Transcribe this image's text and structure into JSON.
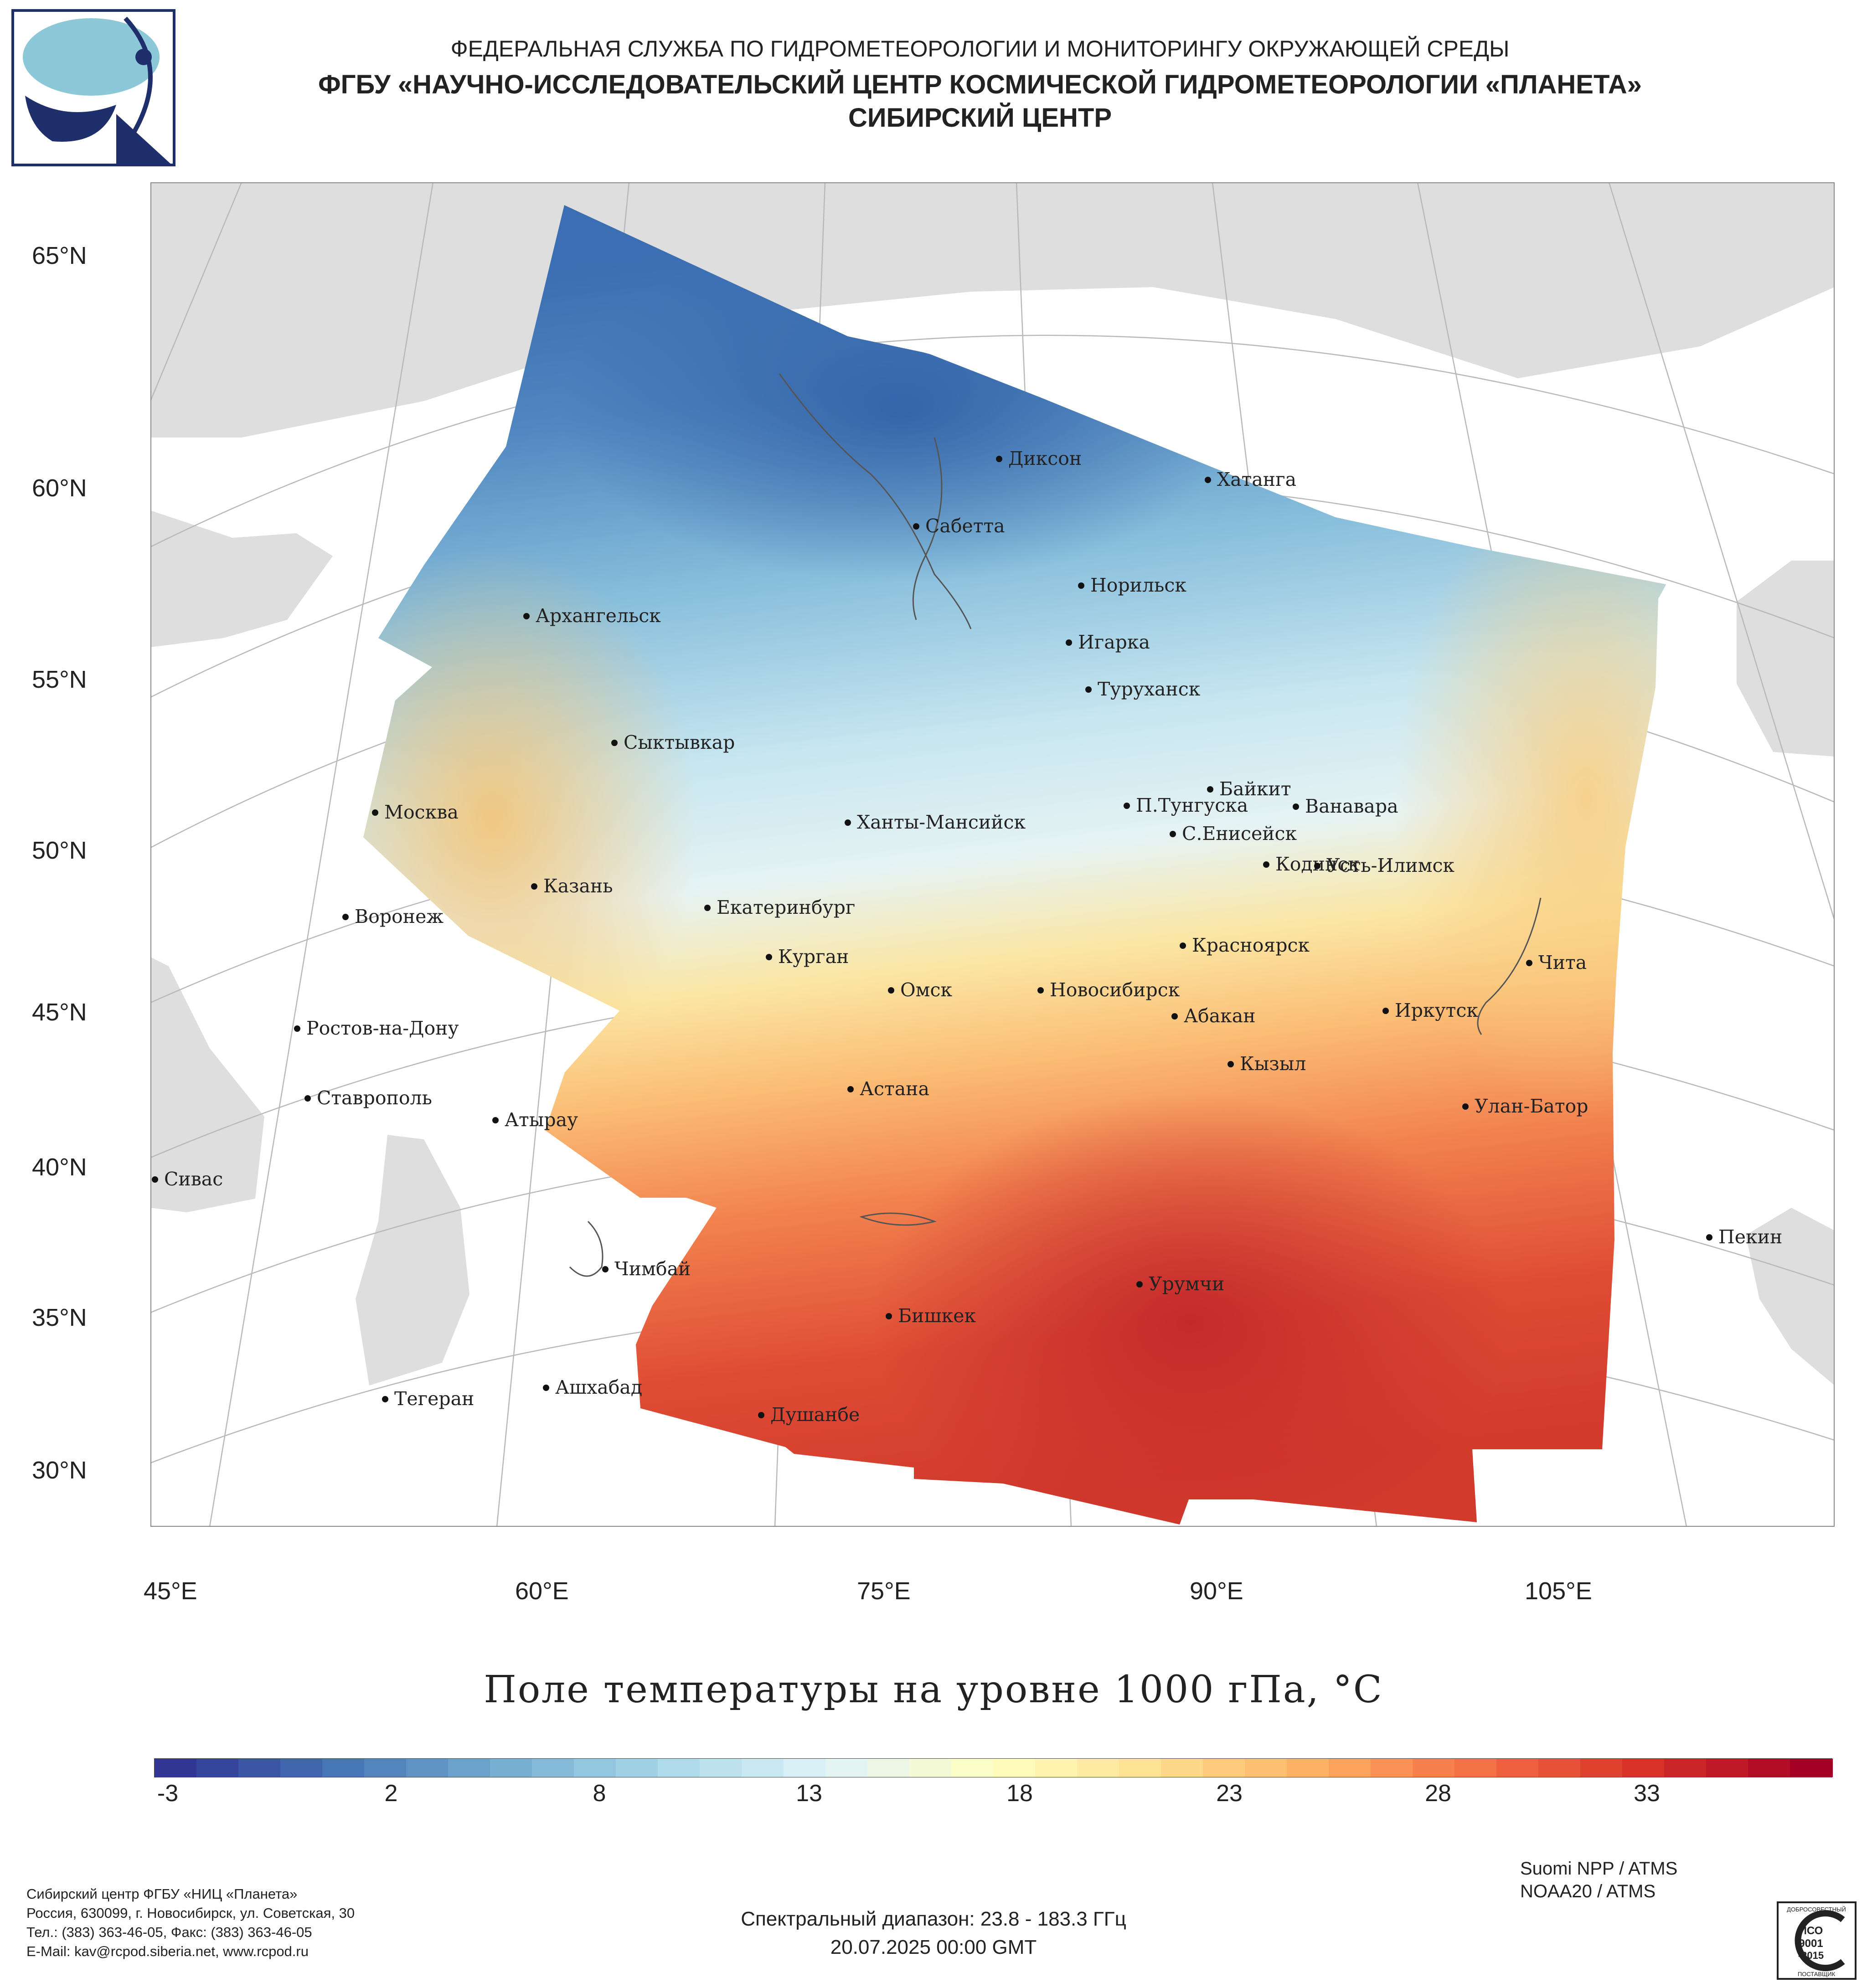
{
  "header": {
    "line1": "ФЕДЕРАЛЬНАЯ СЛУЖБА ПО ГИДРОМЕТЕОРОЛОГИИ И МОНИТОРИНГУ ОКРУЖАЮЩЕЙ СРЕДЫ",
    "line2": "ФГБУ «НАУЧНО-ИССЛЕДОВАТЕЛЬСКИЙ ЦЕНТР КОСМИЧЕСКОЙ ГИДРОМЕТЕОРОЛОГИИ «ПЛАНЕТА»",
    "line3": "СИБИРСКИЙ ЦЕНТР"
  },
  "map": {
    "lat_labels": [
      "65°N",
      "60°N",
      "55°N",
      "50°N",
      "45°N",
      "40°N",
      "35°N",
      "30°N"
    ],
    "lon_labels": [
      "45°E",
      "60°E",
      "75°E",
      "90°E",
      "105°E"
    ],
    "cities": [
      "Диксон",
      "Хатанга",
      "Сабетта",
      "Норильск",
      "Архангельск",
      "Игарка",
      "Туруханск",
      "Сыктывкар",
      "Байкит",
      "П.Тунгуска",
      "Ванавара",
      "Москва",
      "Ханты-Мансийск",
      "С.Енисейск",
      "Кодинск",
      "Усть-Илимск",
      "Казань",
      "Екатеринбург",
      "Воронеж",
      "Красноярск",
      "Курган",
      "Чита",
      "Омск",
      "Новосибирск",
      "Иркутск",
      "Абакан",
      "Ростов-на-Дону",
      "Кызыл",
      "Астана",
      "Ставрополь",
      "Улан-Батор",
      "Атырау",
      "Сивас",
      "Пекин",
      "Чимбай",
      "Урумчи",
      "Бишкек",
      "Ашхабад",
      "Тегеран",
      "Душанбе"
    ]
  },
  "title": "Поле температуры на уровне 1000 гПа, °С",
  "colorbar": {
    "ticks": [
      "-3",
      "2",
      "8",
      "13",
      "18",
      "23",
      "28",
      "33"
    ],
    "colors": [
      "#313695",
      "#4575b4",
      "#74add1",
      "#abd9e9",
      "#e0f3f8",
      "#ffffbf",
      "#fee090",
      "#fdae61",
      "#f46d43",
      "#d73027",
      "#a50026"
    ]
  },
  "footer": {
    "org_lines": [
      "Сибирский центр ФГБУ «НИЦ «Планета»",
      "Россия, 630099, г. Новосибирск, ул. Советская, 30",
      "Тел.: (383) 363-46-05, Факс: (383) 363-46-05",
      "E-Mail: kav@rcpod.siberia.net, www.rcpod.ru"
    ],
    "spectral": "Спектральный диапазон: 23.8 - 183.3 ГГц",
    "datetime": "20.07.2025 00:00 GMT",
    "instruments": [
      "Suomi NPP / ATMS",
      "NOAA20 / ATMS"
    ]
  },
  "iso_badge": [
    "ДОБРОСОВЕСТНЫЙ",
    "ИСО",
    "9001",
    "-2015",
    "ПОСТАВЩИК"
  ]
}
